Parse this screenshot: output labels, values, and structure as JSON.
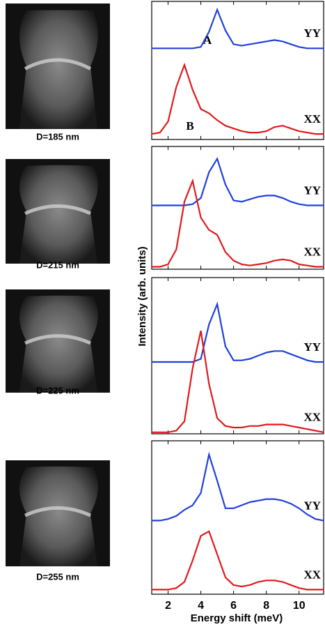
{
  "figure": {
    "ylabel": "Intensity (arb. units)",
    "xlabel": "Energy shift (meV)"
  },
  "chart_data": [
    {
      "type": "line",
      "image_caption": "D=185 nm",
      "annotations": [
        "A",
        "B"
      ],
      "x": [
        1,
        1.5,
        2,
        2.5,
        3,
        3.5,
        4,
        4.5,
        5,
        5.5,
        6,
        6.5,
        7,
        7.5,
        8,
        8.5,
        9,
        9.5,
        10,
        10.5,
        11,
        11.5
      ],
      "xlim": [
        1,
        11.5
      ],
      "ylim": [
        0,
        10
      ],
      "series": [
        {
          "name": "YY",
          "color": "#1f3fdc",
          "values": [
            6.6,
            6.6,
            6.6,
            6.6,
            6.6,
            6.6,
            6.7,
            7.8,
            9.4,
            7.9,
            6.9,
            6.8,
            6.9,
            7.0,
            7.1,
            7.2,
            7.1,
            6.9,
            6.7,
            6.6,
            6.6,
            6.6
          ]
        },
        {
          "name": "XX",
          "color": "#e0191c",
          "values": [
            0.4,
            0.5,
            1.3,
            3.8,
            5.4,
            3.6,
            2.2,
            1.9,
            1.4,
            1.0,
            0.8,
            0.6,
            0.5,
            0.5,
            0.6,
            0.9,
            1.0,
            0.8,
            0.6,
            0.5,
            0.4,
            0.4
          ]
        }
      ]
    },
    {
      "type": "line",
      "image_caption": "D=215 nm",
      "x": [
        1,
        1.5,
        2,
        2.5,
        3,
        3.5,
        4,
        4.5,
        5,
        5.5,
        6,
        6.5,
        7,
        7.5,
        8,
        8.5,
        9,
        9.5,
        10,
        10.5,
        11,
        11.5
      ],
      "xlim": [
        1,
        11.5
      ],
      "ylim": [
        0,
        10
      ],
      "series": [
        {
          "name": "YY",
          "color": "#1f3fdc",
          "values": [
            5.2,
            5.2,
            5.2,
            5.2,
            5.2,
            5.3,
            5.8,
            7.9,
            9.0,
            6.9,
            5.6,
            5.5,
            5.7,
            5.9,
            6.0,
            6.0,
            5.8,
            5.5,
            5.3,
            5.2,
            5.2,
            5.2
          ]
        },
        {
          "name": "XX",
          "color": "#e0191c",
          "values": [
            0.2,
            0.2,
            0.4,
            1.6,
            5.5,
            7.2,
            4.2,
            3.2,
            2.8,
            1.4,
            0.7,
            0.4,
            0.3,
            0.4,
            0.5,
            0.7,
            0.8,
            0.7,
            0.4,
            0.3,
            0.2,
            0.2
          ]
        }
      ]
    },
    {
      "type": "line",
      "image_caption": "D=225 nm",
      "x": [
        1,
        1.5,
        2,
        2.5,
        3,
        3.5,
        4,
        4.5,
        5,
        5.5,
        6,
        6.5,
        7,
        7.5,
        8,
        8.5,
        9,
        9.5,
        10,
        10.5,
        11,
        11.5
      ],
      "xlim": [
        1,
        11.5
      ],
      "ylim": [
        0,
        10
      ],
      "series": [
        {
          "name": "YY",
          "color": "#1f3fdc",
          "values": [
            4.6,
            4.6,
            4.6,
            4.6,
            4.6,
            4.6,
            4.8,
            7.0,
            8.3,
            5.6,
            4.7,
            4.7,
            4.8,
            5.0,
            5.2,
            5.3,
            5.3,
            5.1,
            4.9,
            4.7,
            4.6,
            4.6
          ]
        },
        {
          "name": "XX",
          "color": "#e0191c",
          "values": [
            0.1,
            0.1,
            0.1,
            0.2,
            0.8,
            4.2,
            6.6,
            3.2,
            1.0,
            0.5,
            0.4,
            0.4,
            0.5,
            0.5,
            0.6,
            0.6,
            0.6,
            0.5,
            0.4,
            0.3,
            0.2,
            0.1
          ]
        }
      ]
    },
    {
      "type": "line",
      "image_caption": "D=255 nm",
      "xticks": [
        2,
        4,
        6,
        8,
        10
      ],
      "x": [
        1,
        1.5,
        2,
        2.5,
        3,
        3.5,
        4,
        4.5,
        5,
        5.5,
        6,
        6.5,
        7,
        7.5,
        8,
        8.5,
        9,
        9.5,
        10,
        10.5,
        11,
        11.5
      ],
      "xlim": [
        1,
        11.5
      ],
      "ylim": [
        0,
        10
      ],
      "series": [
        {
          "name": "YY",
          "color": "#1f3fdc",
          "values": [
            4.8,
            4.8,
            4.9,
            5.1,
            5.5,
            5.8,
            6.6,
            9.1,
            7.4,
            5.6,
            5.6,
            5.8,
            6.0,
            6.1,
            6.2,
            6.2,
            6.1,
            5.9,
            5.6,
            5.2,
            4.9,
            4.8
          ]
        },
        {
          "name": "XX",
          "color": "#e0191c",
          "values": [
            0.3,
            0.3,
            0.3,
            0.4,
            0.8,
            2.2,
            3.8,
            4.1,
            2.6,
            1.1,
            0.6,
            0.5,
            0.6,
            0.8,
            0.9,
            0.9,
            0.8,
            0.6,
            0.4,
            0.3,
            0.3,
            0.3
          ]
        }
      ]
    }
  ]
}
